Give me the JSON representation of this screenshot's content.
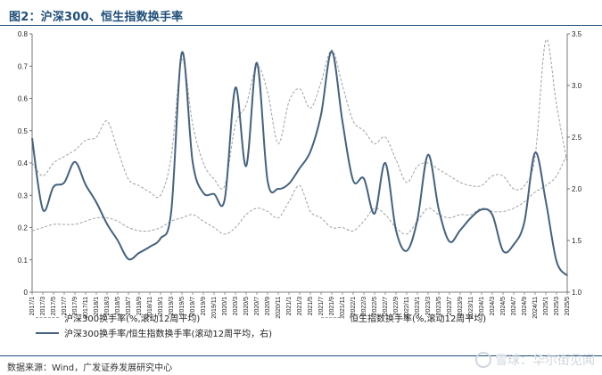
{
  "figure": {
    "title": "图2：沪深300、恒生指数换手率",
    "source": "数据来源：Wind，广发证券发展研究中心",
    "watermark": "雪球：华尔街见闻"
  },
  "legend": {
    "hs300": "沪深300换手率(%,滚动12周平均)",
    "hsi": "恒生指数换手率(%,滚动12周平均)",
    "ratio": "沪深300换手率/恒生指数换手率(滚动12周平均，右)"
  },
  "colors": {
    "hs300": "#a0a0a0",
    "hsi": "#a0a0a0",
    "ratio": "#44627f",
    "title": "#1f4e79"
  },
  "chart_data": {
    "type": "line",
    "x_labels": [
      "2017/1",
      "2017/3",
      "2017/5",
      "2017/7",
      "2017/9",
      "2017/11",
      "2018/1",
      "2018/3",
      "2018/5",
      "2018/7",
      "2018/9",
      "2018/11",
      "2019/1",
      "2019/3",
      "2019/5",
      "2019/7",
      "2019/9",
      "2019/11",
      "2020/1",
      "2020/3",
      "2020/5",
      "2020/7",
      "2020/9",
      "2020/11",
      "2021/1",
      "2021/3",
      "2021/5",
      "2021/7",
      "2021/9",
      "2021/11",
      "2022/1",
      "2022/3",
      "2022/5",
      "2022/7",
      "2022/9",
      "2022/11",
      "2023/1",
      "2023/3",
      "2023/5",
      "2023/7",
      "2023/9",
      "2023/11",
      "2024/1",
      "2024/3",
      "2024/5",
      "2024/7",
      "2024/9",
      "2024/11",
      "2025/1",
      "2025/3",
      "2025/5"
    ],
    "y_left": {
      "ticks": [
        "0",
        "0.1",
        "0.2",
        "0.3",
        "0.4",
        "0.5",
        "0.6",
        "0.7",
        "0.8"
      ],
      "range": [
        0,
        0.8
      ]
    },
    "y_right": {
      "ticks": [
        "1.0",
        "1.5",
        "2.0",
        "2.5",
        "3.0",
        "3.5"
      ],
      "range": [
        1.0,
        3.5
      ]
    },
    "series": [
      {
        "name": "沪深300换手率(%,滚动12周平均)",
        "axis": "left",
        "style": "dashed",
        "values": [
          0.4,
          0.36,
          0.4,
          0.42,
          0.44,
          0.47,
          0.48,
          0.53,
          0.44,
          0.35,
          0.33,
          0.31,
          0.3,
          0.42,
          0.72,
          0.52,
          0.4,
          0.35,
          0.33,
          0.52,
          0.58,
          0.7,
          0.62,
          0.46,
          0.59,
          0.63,
          0.57,
          0.65,
          0.75,
          0.64,
          0.53,
          0.5,
          0.46,
          0.48,
          0.41,
          0.34,
          0.39,
          0.4,
          0.38,
          0.36,
          0.34,
          0.33,
          0.33,
          0.36,
          0.36,
          0.32,
          0.33,
          0.42,
          0.78,
          0.58,
          0.4
        ]
      },
      {
        "name": "恒生指数换手率(%,滚动12周平均)",
        "axis": "left",
        "style": "dashed",
        "values": [
          0.19,
          0.2,
          0.21,
          0.21,
          0.21,
          0.22,
          0.23,
          0.23,
          0.22,
          0.2,
          0.19,
          0.19,
          0.2,
          0.22,
          0.23,
          0.24,
          0.22,
          0.2,
          0.18,
          0.2,
          0.24,
          0.26,
          0.25,
          0.23,
          0.28,
          0.33,
          0.25,
          0.23,
          0.2,
          0.2,
          0.19,
          0.22,
          0.26,
          0.24,
          0.2,
          0.18,
          0.22,
          0.26,
          0.24,
          0.23,
          0.24,
          0.24,
          0.26,
          0.25,
          0.25,
          0.26,
          0.28,
          0.31,
          0.33,
          0.36,
          0.43
        ]
      },
      {
        "name": "沪深300换手率/恒生指数换手率(滚动12周平均，右)",
        "axis": "right",
        "style": "solid",
        "values": [
          2.49,
          1.8,
          2.02,
          2.06,
          2.26,
          2.04,
          1.87,
          1.66,
          1.5,
          1.32,
          1.38,
          1.44,
          1.52,
          1.78,
          3.32,
          2.26,
          1.96,
          1.95,
          1.9,
          2.98,
          2.22,
          3.22,
          2.08,
          2.0,
          2.05,
          2.2,
          2.36,
          2.72,
          3.33,
          2.65,
          2.08,
          2.1,
          1.76,
          2.25,
          1.6,
          1.4,
          1.7,
          2.33,
          1.8,
          1.49,
          1.6,
          1.72,
          1.8,
          1.75,
          1.4,
          1.46,
          1.68,
          2.35,
          1.88,
          1.3,
          1.16
        ]
      }
    ]
  }
}
